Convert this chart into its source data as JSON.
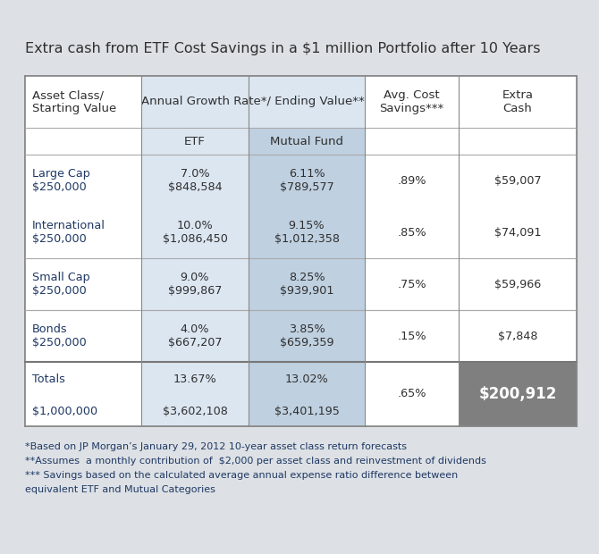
{
  "title": "Extra cash from ETF Cost Savings in a $1 million Portfolio after 10 Years",
  "title_fontsize": 11.5,
  "bg_color": "#dde1e5",
  "table_bg": "#ffffff",
  "header_span_bg": "#dce6f1",
  "etf_col_bg": "#dce6f1",
  "mf_col_bg": "#bfd0e0",
  "totals_extra_cash_bg": "#7f7f7f",
  "totals_extra_cash_fg": "#ffffff",
  "text_blue": "#1f3864",
  "text_dark": "#2f2f2f",
  "footnote_color": "#1f3864",
  "footnote_fontsize": 8.0,
  "rows": [
    {
      "asset": "Large Cap\n$250,000",
      "etf": "7.0%\n$848,584",
      "mf": "6.11%\n$789,577",
      "savings": ".89%",
      "extra": "$59,007"
    },
    {
      "asset": "International\n$250,000",
      "etf": "10.0%\n$1,086,450",
      "mf": "9.15%\n$1,012,358",
      "savings": ".85%",
      "extra": "$74,091"
    },
    {
      "asset": "Small Cap\n$250,000",
      "etf": "9.0%\n$999,867",
      "mf": "8.25%\n$939,901",
      "savings": ".75%",
      "extra": "$59,966"
    },
    {
      "asset": "Bonds\n$250,000",
      "etf": "4.0%\n$667,207",
      "mf": "3.85%\n$659,359",
      "savings": ".15%",
      "extra": "$7,848"
    }
  ],
  "totals": {
    "asset1": "Totals",
    "asset2": "$1,000,000",
    "etf1": "13.67%",
    "etf2": "$3,602,108",
    "mf1": "13.02%",
    "mf2": "$3,401,195",
    "savings": ".65%",
    "extra": "$200,912"
  },
  "footnotes": [
    "*Based on JP Morgan’s January 29, 2012 10-year asset class return forecasts",
    "**Assumes  a monthly contribution of  $2,000 per asset class and reinvestment of dividends",
    "*** Savings based on the calculated average annual expense ratio difference between",
    "equivalent ETF and Mutual Categories"
  ]
}
